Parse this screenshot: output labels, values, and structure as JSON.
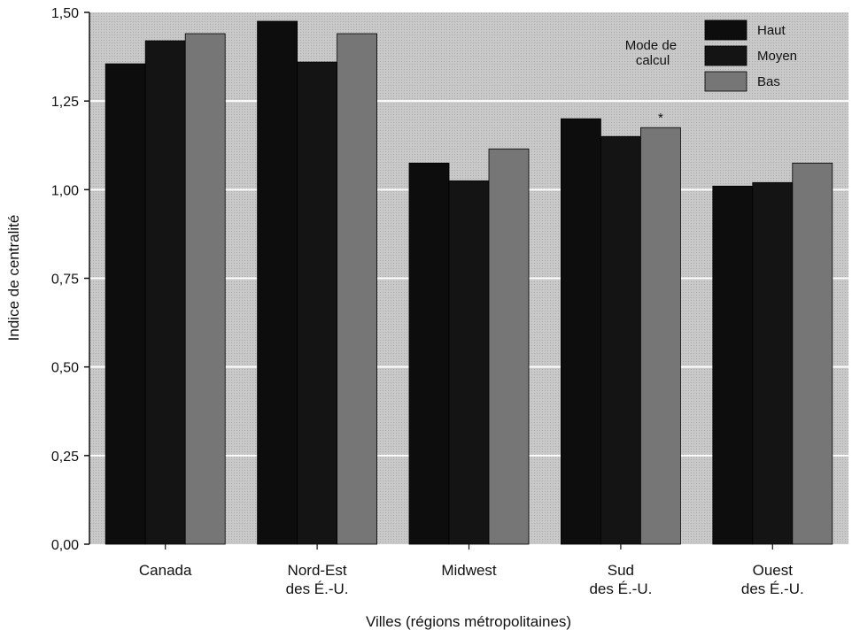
{
  "chart_data": {
    "type": "bar",
    "title": "",
    "xlabel": "Villes (régions métropolitaines)",
    "ylabel": "Indice de centralité",
    "ylim": [
      0,
      1.5
    ],
    "yticks": [
      "0,00",
      "0,25",
      "0,50",
      "0,75",
      "1,00",
      "1,25",
      "1,50"
    ],
    "categories": [
      [
        "Canada"
      ],
      [
        "Nord-Est",
        "des É.-U."
      ],
      [
        "Midwest"
      ],
      [
        "Sud",
        "des É.-U."
      ],
      [
        "Ouest",
        "des É.-U."
      ]
    ],
    "legend_title": [
      "Mode de",
      "calcul"
    ],
    "legend_position": "top-right",
    "grid": "horizontal",
    "series": [
      {
        "name": "Haut",
        "color": "#0d0d0d",
        "values": [
          1.355,
          1.475,
          1.075,
          1.2,
          1.01
        ]
      },
      {
        "name": "Moyen",
        "color": "#141414",
        "values": [
          1.42,
          1.36,
          1.025,
          1.15,
          1.02
        ]
      },
      {
        "name": "Bas",
        "color": "#767676",
        "values": [
          1.44,
          1.44,
          1.115,
          1.175,
          1.075
        ]
      }
    ],
    "annotations": [
      "*"
    ]
  }
}
